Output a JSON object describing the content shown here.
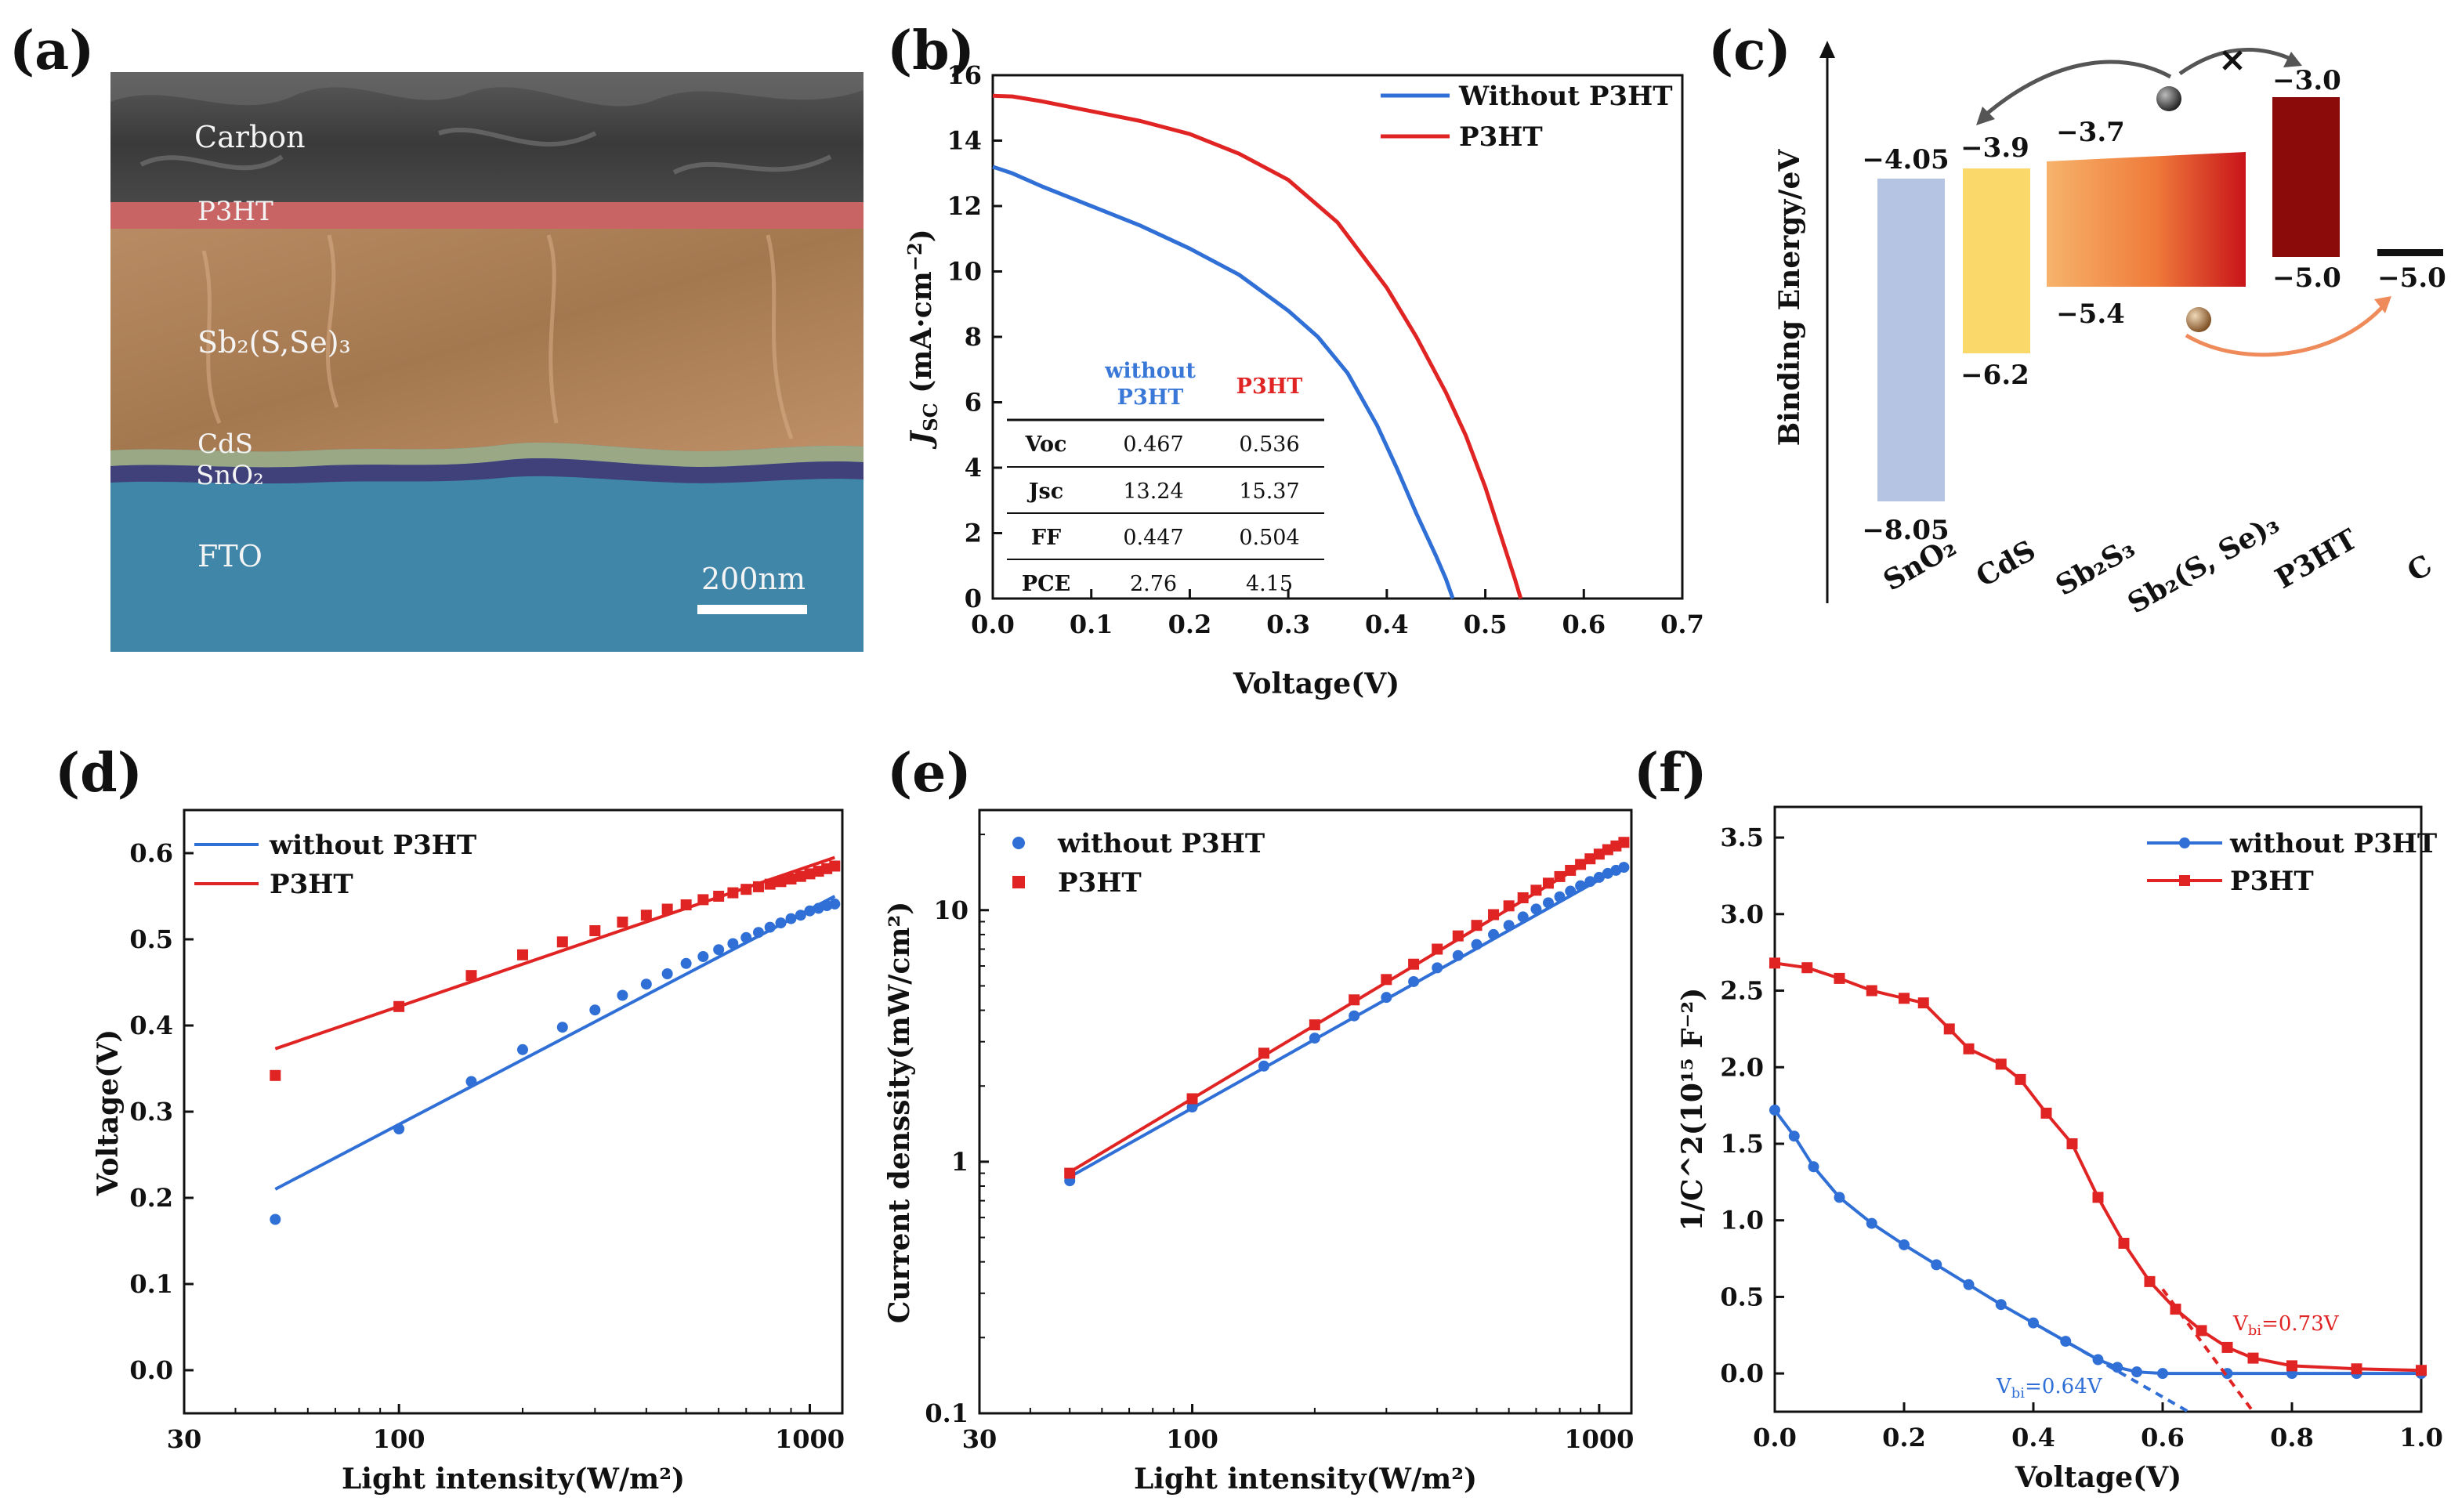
{
  "colors": {
    "blue": "#2f6fd6",
    "red": "#e02424",
    "table_blue": "#3a78d8",
    "table_red": "#e02424"
  },
  "chart_data": [
    {
      "id": "a",
      "type": "image",
      "panel_label": "(a)",
      "layers": [
        "Carbon",
        "P3HT",
        "Sb₂(S,Se)₃",
        "CdS",
        "SnO₂",
        "FTO"
      ],
      "scale_bar": "200nm"
    },
    {
      "id": "b",
      "type": "line",
      "panel_label": "(b)",
      "xlabel": "Voltage(V)",
      "ylabel": "J_SC (mA·cm⁻²)",
      "xlim": [
        0,
        0.7
      ],
      "ylim": [
        0,
        16
      ],
      "xticks": [
        "0.0",
        "0.1",
        "0.2",
        "0.3",
        "0.4",
        "0.5",
        "0.6",
        "0.7"
      ],
      "yticks": [
        "0",
        "2",
        "4",
        "6",
        "8",
        "10",
        "12",
        "14",
        "16"
      ],
      "series": [
        {
          "name": "Without P3HT",
          "color": "#2f6fd6",
          "x": [
            0,
            0.02,
            0.05,
            0.1,
            0.15,
            0.2,
            0.25,
            0.3,
            0.33,
            0.36,
            0.39,
            0.41,
            0.43,
            0.45,
            0.46,
            0.467
          ],
          "y": [
            13.2,
            13.0,
            12.6,
            12.0,
            11.4,
            10.7,
            9.9,
            8.8,
            8.0,
            6.9,
            5.3,
            4.0,
            2.6,
            1.3,
            0.6,
            0
          ]
        },
        {
          "name": "P3HT",
          "color": "#e02424",
          "x": [
            0,
            0.02,
            0.05,
            0.1,
            0.15,
            0.2,
            0.25,
            0.3,
            0.35,
            0.4,
            0.43,
            0.46,
            0.48,
            0.5,
            0.515,
            0.53,
            0.536
          ],
          "y": [
            15.37,
            15.35,
            15.2,
            14.9,
            14.6,
            14.2,
            13.6,
            12.8,
            11.5,
            9.5,
            8.0,
            6.3,
            5.0,
            3.4,
            2.0,
            0.6,
            0
          ]
        }
      ],
      "table": {
        "headers": [
          "",
          "without P3HT",
          "P3HT"
        ],
        "rows": [
          [
            "Voc",
            "0.467",
            "0.536"
          ],
          [
            "Jsc",
            "13.24",
            "15.37"
          ],
          [
            "FF",
            "0.447",
            "0.504"
          ],
          [
            "PCE",
            "2.76",
            "4.15"
          ]
        ]
      }
    },
    {
      "id": "c",
      "type": "energy-diagram",
      "panel_label": "(c)",
      "ylabel": "Binding Energy/eV",
      "materials": [
        "SnO₂",
        "CdS",
        "Sb₂S₃",
        "Sb₂(S, Se)₃",
        "P3HT",
        "C"
      ],
      "levels": {
        "SnO2": [
          "−4.05",
          "−8.05"
        ],
        "CdS": [
          "−3.9",
          "−6.2"
        ],
        "Sb2S3": [
          "−3.7",
          "−5.4"
        ],
        "P3HT": [
          "−3.0",
          "−5.0"
        ],
        "C": [
          "−5.0"
        ]
      }
    },
    {
      "id": "d",
      "type": "scatter",
      "panel_label": "(d)",
      "xscale": "log",
      "xlabel": "Light intensity(W/m²)",
      "ylabel": "Voltage(V)",
      "xlim": [
        30,
        1200
      ],
      "ylim": [
        -0.05,
        0.65
      ],
      "xticks": [
        {
          "v": 30,
          "t": "30"
        },
        {
          "v": 100,
          "t": "100"
        },
        {
          "v": 1000,
          "t": "1000"
        }
      ],
      "yticks": [
        {
          "v": 0,
          "t": "0.0"
        },
        {
          "v": 0.1,
          "t": "0.1"
        },
        {
          "v": 0.2,
          "t": "0.2"
        },
        {
          "v": 0.3,
          "t": "0.3"
        },
        {
          "v": 0.4,
          "t": "0.4"
        },
        {
          "v": 0.5,
          "t": "0.5"
        },
        {
          "v": 0.6,
          "t": "0.6"
        }
      ],
      "series": [
        {
          "name": "without P3HT",
          "color": "#2f6fd6",
          "marker": "circle",
          "x": [
            50,
            100,
            150,
            200,
            250,
            300,
            350,
            400,
            450,
            500,
            550,
            600,
            650,
            700,
            750,
            800,
            850,
            900,
            950,
            1000,
            1050,
            1100,
            1150
          ],
          "y": [
            0.175,
            0.28,
            0.335,
            0.372,
            0.398,
            0.418,
            0.435,
            0.448,
            0.46,
            0.472,
            0.48,
            0.488,
            0.495,
            0.502,
            0.508,
            0.514,
            0.519,
            0.524,
            0.528,
            0.533,
            0.536,
            0.539,
            0.541
          ],
          "fit": [
            [
              50,
              0.21
            ],
            [
              1150,
              0.55
            ]
          ]
        },
        {
          "name": "P3HT",
          "color": "#e02424",
          "marker": "square",
          "x": [
            50,
            100,
            150,
            200,
            250,
            300,
            350,
            400,
            450,
            500,
            550,
            600,
            650,
            700,
            750,
            800,
            850,
            900,
            950,
            1000,
            1050,
            1100,
            1150
          ],
          "y": [
            0.342,
            0.422,
            0.458,
            0.482,
            0.497,
            0.51,
            0.52,
            0.528,
            0.535,
            0.54,
            0.546,
            0.55,
            0.554,
            0.558,
            0.561,
            0.564,
            0.567,
            0.57,
            0.573,
            0.576,
            0.579,
            0.582,
            0.585
          ],
          "fit": [
            [
              50,
              0.373
            ],
            [
              1150,
              0.595
            ]
          ]
        }
      ]
    },
    {
      "id": "e",
      "type": "scatter",
      "panel_label": "(e)",
      "xscale": "log",
      "yscale": "log",
      "xlabel": "Light intensity(W/m²)",
      "ylabel": "Current denssity(mW/cm²)",
      "xlim": [
        30,
        1200
      ],
      "ylim": [
        0.1,
        25
      ],
      "xticks": [
        {
          "v": 30,
          "t": "30"
        },
        {
          "v": 100,
          "t": "100"
        },
        {
          "v": 1000,
          "t": "1000"
        }
      ],
      "yticks": [
        {
          "v": 0.1,
          "t": "0.1"
        },
        {
          "v": 1,
          "t": "1"
        },
        {
          "v": 10,
          "t": "10"
        }
      ],
      "series": [
        {
          "name": "without P3HT",
          "color": "#2f6fd6",
          "marker": "circle",
          "x": [
            50,
            100,
            150,
            200,
            250,
            300,
            350,
            400,
            450,
            500,
            550,
            600,
            650,
            700,
            750,
            800,
            850,
            900,
            950,
            1000,
            1050,
            1100,
            1150
          ],
          "y": [
            0.84,
            1.65,
            2.4,
            3.1,
            3.8,
            4.5,
            5.2,
            5.9,
            6.6,
            7.3,
            8.0,
            8.7,
            9.4,
            10.1,
            10.7,
            11.3,
            11.9,
            12.5,
            13.0,
            13.5,
            14.0,
            14.4,
            14.8
          ],
          "fit": [
            [
              50,
              0.87
            ],
            [
              1150,
              15.0
            ]
          ]
        },
        {
          "name": "P3HT",
          "color": "#e02424",
          "marker": "square",
          "x": [
            50,
            100,
            150,
            200,
            250,
            300,
            350,
            400,
            450,
            500,
            550,
            600,
            650,
            700,
            750,
            800,
            850,
            900,
            950,
            1000,
            1050,
            1100,
            1150
          ],
          "y": [
            0.9,
            1.78,
            2.7,
            3.5,
            4.4,
            5.3,
            6.1,
            7.0,
            7.9,
            8.7,
            9.6,
            10.4,
            11.2,
            12.0,
            12.8,
            13.6,
            14.4,
            15.2,
            16.0,
            16.7,
            17.4,
            18.0,
            18.6
          ],
          "fit": [
            [
              50,
              0.91
            ],
            [
              1150,
              19.0
            ]
          ]
        }
      ]
    },
    {
      "id": "f",
      "type": "scatter",
      "panel_label": "(f)",
      "xlabel": "Voltage(V)",
      "ylabel": "1/C^2(10¹⁵ F⁻²)",
      "xlim": [
        0,
        1.0
      ],
      "ylim": [
        -0.25,
        3.7
      ],
      "xticks": [
        {
          "v": 0,
          "t": "0.0"
        },
        {
          "v": 0.2,
          "t": "0.2"
        },
        {
          "v": 0.4,
          "t": "0.4"
        },
        {
          "v": 0.6,
          "t": "0.6"
        },
        {
          "v": 0.8,
          "t": "0.8"
        },
        {
          "v": 1.0,
          "t": "1.0"
        }
      ],
      "yticks": [
        {
          "v": 0,
          "t": "0.0"
        },
        {
          "v": 0.5,
          "t": "0.5"
        },
        {
          "v": 1.0,
          "t": "1.0"
        },
        {
          "v": 1.5,
          "t": "1.5"
        },
        {
          "v": 2.0,
          "t": "2.0"
        },
        {
          "v": 2.5,
          "t": "2.5"
        },
        {
          "v": 3.0,
          "t": "3.0"
        },
        {
          "v": 3.5,
          "t": "3.5"
        }
      ],
      "series": [
        {
          "name": "without P3HT",
          "color": "#2f6fd6",
          "marker": "circle",
          "x": [
            0,
            0.03,
            0.06,
            0.1,
            0.15,
            0.2,
            0.25,
            0.3,
            0.35,
            0.4,
            0.45,
            0.5,
            0.53,
            0.56,
            0.6,
            0.7,
            0.8,
            0.9,
            1.0
          ],
          "y": [
            1.72,
            1.55,
            1.35,
            1.15,
            0.98,
            0.84,
            0.71,
            0.58,
            0.45,
            0.33,
            0.21,
            0.09,
            0.04,
            0.01,
            0.0,
            0.0,
            0.0,
            0.0,
            0.0
          ],
          "fit": [
            [
              0.4,
              0.33
            ],
            [
              0.64,
              -0.25
            ]
          ],
          "annotation": "V_bi=0.64V"
        },
        {
          "name": "P3HT",
          "color": "#e02424",
          "marker": "square",
          "x": [
            0,
            0.05,
            0.1,
            0.15,
            0.2,
            0.23,
            0.27,
            0.3,
            0.35,
            0.38,
            0.42,
            0.46,
            0.5,
            0.54,
            0.58,
            0.62,
            0.66,
            0.7,
            0.74,
            0.8,
            0.9,
            1.0
          ],
          "y": [
            2.68,
            2.65,
            2.58,
            2.5,
            2.45,
            2.42,
            2.25,
            2.12,
            2.02,
            1.92,
            1.7,
            1.5,
            1.15,
            0.85,
            0.6,
            0.42,
            0.28,
            0.17,
            0.1,
            0.05,
            0.03,
            0.02
          ],
          "fit": [
            [
              0.6,
              0.55
            ],
            [
              0.74,
              -0.25
            ]
          ],
          "annotation": "V_bi=0.73V"
        }
      ]
    }
  ]
}
